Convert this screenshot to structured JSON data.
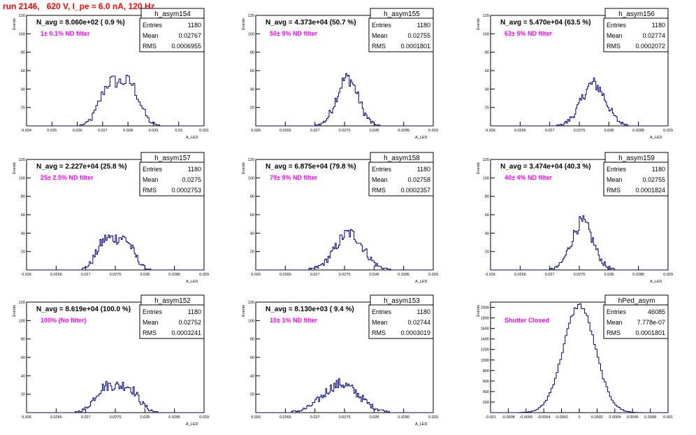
{
  "run_title": "run 2146,   620 V, I_pe ≈ 6.0 nA, 120 Hz",
  "colors": {
    "histogram": "#000080",
    "annotation": "#ff00ff",
    "title": "#ff0000",
    "frame": "#000000"
  },
  "stat_labels": {
    "entries": "Entries",
    "mean": "Mean",
    "rms": "RMS"
  },
  "chart_data": [
    {
      "type": "histogram",
      "name": "h_asym154",
      "header": "N_avg = 8.060e+02 ( 0.9 %)",
      "filter_label": "1± 0.1% ND filter",
      "stats": {
        "entries": "1180",
        "mean": "0.02767",
        "rms": "0.0006955"
      },
      "ylabel": "Events",
      "xlabel": "A_LED",
      "xlim": [
        0.024,
        0.031
      ],
      "ylim": [
        0,
        120
      ],
      "xticks": [
        "0.024",
        "0.025",
        "0.026",
        "0.027",
        "0.028",
        "0.029",
        "0.03",
        "0.031"
      ],
      "yticks": [
        "20",
        "40",
        "60",
        "80",
        "100",
        "120"
      ],
      "mean": 0.02767,
      "sigma": 0.0006955,
      "entries": 1180,
      "bins": 100,
      "shape": "bimodal"
    },
    {
      "type": "histogram",
      "name": "h_asym155",
      "header": "N_avg = 4.373e+04 (50.7 %)",
      "filter_label": "50± 5% ND filter",
      "stats": {
        "entries": "1180",
        "mean": "0.02755",
        "rms": "0.0001801"
      },
      "ylabel": "Events",
      "xlabel": "A_LED",
      "xlim": [
        0.026,
        0.029
      ],
      "ylim": [
        0,
        120
      ],
      "xticks": [
        "0.026",
        "0.0265",
        "0.027",
        "0.0275",
        "0.028",
        "0.0285",
        "0.029"
      ],
      "yticks": [
        "20",
        "40",
        "60",
        "80",
        "100",
        "120"
      ],
      "mean": 0.02755,
      "sigma": 0.0001801,
      "entries": 1180,
      "bins": 150,
      "shape": "gauss"
    },
    {
      "type": "histogram",
      "name": "h_asym156",
      "header": "N_avg = 5.470e+04 (63.5 %)",
      "filter_label": "63± 5% ND filter",
      "stats": {
        "entries": "1180",
        "mean": "0.02774",
        "rms": "0.0002072"
      },
      "ylabel": "Events",
      "xlabel": "A_LED",
      "xlim": [
        0.026,
        0.029
      ],
      "ylim": [
        0,
        120
      ],
      "xticks": [
        "0.026",
        "0.0265",
        "0.027",
        "0.0275",
        "0.028",
        "0.0285",
        "0.029"
      ],
      "yticks": [
        "20",
        "40",
        "60",
        "80",
        "100",
        "120"
      ],
      "mean": 0.02774,
      "sigma": 0.0002072,
      "entries": 1180,
      "bins": 150,
      "shape": "gauss"
    },
    {
      "type": "histogram",
      "name": "h_asym157",
      "header": "N_avg = 2.227e+04 (25.8 %)",
      "filter_label": "25± 2.5% ND filter",
      "stats": {
        "entries": "1180",
        "mean": "0.0275",
        "rms": "0.0002753"
      },
      "ylabel": "Events",
      "xlabel": "A_LED",
      "xlim": [
        0.026,
        0.029
      ],
      "ylim": [
        0,
        120
      ],
      "xticks": [
        "0.026",
        "0.0265",
        "0.027",
        "0.0275",
        "0.028",
        "0.0285",
        "0.029"
      ],
      "yticks": [
        "20",
        "40",
        "60",
        "80",
        "100",
        "120"
      ],
      "mean": 0.0275,
      "sigma": 0.0002753,
      "entries": 1180,
      "bins": 150,
      "shape": "bimodal"
    },
    {
      "type": "histogram",
      "name": "h_asym158",
      "header": "N_avg = 6.875e+04 (79.8 %)",
      "filter_label": "79± 5% ND filter",
      "stats": {
        "entries": "1180",
        "mean": "0.02758",
        "rms": "0.0002357"
      },
      "ylabel": "Events",
      "xlabel": "A_LED",
      "xlim": [
        0.026,
        0.029
      ],
      "ylim": [
        0,
        120
      ],
      "xticks": [
        "0.026",
        "0.0265",
        "0.027",
        "0.0275",
        "0.028",
        "0.0285",
        "0.029"
      ],
      "yticks": [
        "20",
        "40",
        "60",
        "80",
        "100",
        "120"
      ],
      "mean": 0.02758,
      "sigma": 0.0002357,
      "entries": 1180,
      "bins": 150,
      "shape": "gauss"
    },
    {
      "type": "histogram",
      "name": "h_asym159",
      "header": "N_avg = 3.474e+04 (40.3 %)",
      "filter_label": "40± 4% ND filter",
      "stats": {
        "entries": "1180",
        "mean": "0.02755",
        "rms": "0.0001824"
      },
      "ylabel": "Events",
      "xlabel": "A_LED",
      "xlim": [
        0.026,
        0.029
      ],
      "ylim": [
        0,
        120
      ],
      "xticks": [
        "0.026",
        "0.0265",
        "0.027",
        "0.0275",
        "0.028",
        "0.0285",
        "0.029"
      ],
      "yticks": [
        "20",
        "40",
        "60",
        "80",
        "100",
        "120"
      ],
      "mean": 0.02755,
      "sigma": 0.0001824,
      "entries": 1180,
      "bins": 150,
      "shape": "gauss"
    },
    {
      "type": "histogram",
      "name": "h_asym152",
      "header": "N_avg = 8.619e+04 (100.0 %)",
      "filter_label": "100% (No filter)",
      "stats": {
        "entries": "1180",
        "mean": "0.02752",
        "rms": "0.0003241"
      },
      "ylabel": "Events",
      "xlabel": "A_LED",
      "xlim": [
        0.026,
        0.029
      ],
      "ylim": [
        0,
        120
      ],
      "xticks": [
        "0.026",
        "0.0265",
        "0.027",
        "0.0275",
        "0.028",
        "0.0285",
        "0.029"
      ],
      "yticks": [
        "20",
        "40",
        "60",
        "80",
        "100",
        "120"
      ],
      "mean": 0.02752,
      "sigma": 0.0003241,
      "entries": 1180,
      "bins": 150,
      "shape": "bimodal"
    },
    {
      "type": "histogram",
      "name": "h_asym153",
      "header": "N_avg = 8.130e+03 ( 9.4 %)",
      "filter_label": "10± 1% ND filter",
      "stats": {
        "entries": "1180",
        "mean": "0.02744",
        "rms": "0.0003019"
      },
      "ylabel": "Events",
      "xlabel": "A_LED",
      "xlim": [
        0.026,
        0.029
      ],
      "ylim": [
        0,
        120
      ],
      "xticks": [
        "0.026",
        "0.0265",
        "0.027",
        "0.0275",
        "0.028",
        "0.0285",
        "0.029"
      ],
      "yticks": [
        "20",
        "40",
        "60",
        "80",
        "100",
        "120"
      ],
      "mean": 0.02744,
      "sigma": 0.0003019,
      "entries": 1180,
      "bins": 150,
      "shape": "gauss"
    },
    {
      "type": "histogram",
      "name": "hPed_asym",
      "header": "",
      "filter_label": "Shutter Closed",
      "stats": {
        "entries": "46085",
        "mean": "7.778e-07",
        "rms": "0.0001801"
      },
      "ylabel": "Events",
      "xlabel": "",
      "xlim": [
        -0.001,
        0.001
      ],
      "ylim": [
        0,
        2100
      ],
      "xticks": [
        "-0.001",
        "-0.0008",
        "-0.0006",
        "-0.0004",
        "-0.0002",
        "0",
        "0.0002",
        "0.0004",
        "0.0006",
        "0.0008",
        "0.001"
      ],
      "yticks": [
        "200",
        "400",
        "600",
        "800",
        "1000",
        "1200",
        "1400",
        "1600",
        "1800",
        "2000"
      ],
      "mean": 8e-07,
      "sigma": 0.0001801,
      "entries": 46085,
      "bins": 100,
      "shape": "gauss"
    }
  ]
}
